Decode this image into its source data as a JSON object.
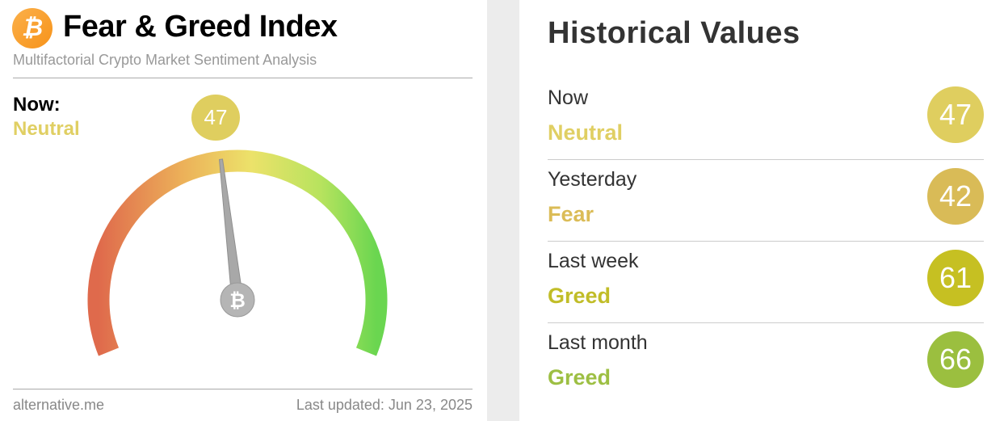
{
  "header": {
    "title": "Fear & Greed Index",
    "subtitle": "Multifactorial Crypto Market Sentiment Analysis",
    "logo_icon": "bitcoin-icon"
  },
  "current": {
    "label": "Now:",
    "classification": "Neutral",
    "value": "47",
    "color": "#dfce5f"
  },
  "gauge": {
    "min": 0,
    "max": 100,
    "value": 47
  },
  "footer": {
    "source": "alternative.me",
    "updated": "Last updated: Jun 23, 2025"
  },
  "historical": {
    "title": "Historical Values",
    "rows": [
      {
        "label": "Now",
        "classification": "Neutral",
        "value": "47",
        "color": "#dfce5f",
        "text_color": "#e0cf63"
      },
      {
        "label": "Yesterday",
        "classification": "Fear",
        "value": "42",
        "color": "#d9bb57",
        "text_color": "#dbbc57"
      },
      {
        "label": "Last week",
        "classification": "Greed",
        "value": "61",
        "color": "#c6c022",
        "text_color": "#c1bd28"
      },
      {
        "label": "Last month",
        "classification": "Greed",
        "value": "66",
        "color": "#9bbf3f",
        "text_color": "#9dbf43"
      }
    ]
  }
}
